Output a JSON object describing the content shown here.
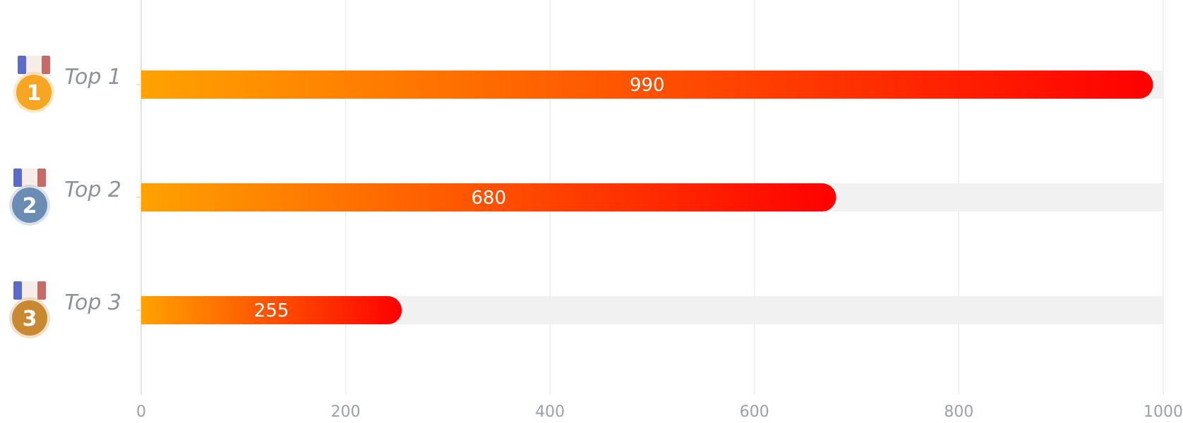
{
  "chart_data": {
    "type": "bar",
    "orientation": "horizontal",
    "categories": [
      "Top 1",
      "Top 2",
      "Top 3"
    ],
    "values": [
      990,
      680,
      255
    ],
    "data_labels": [
      "990",
      "680",
      "255"
    ],
    "xlim": [
      0,
      1000
    ],
    "x_ticks": [
      0,
      200,
      400,
      600,
      800,
      1000
    ],
    "x_tick_labels": [
      "0",
      "200",
      "400",
      "600",
      "800",
      "1000"
    ],
    "grid": true,
    "legend": "none",
    "title": "",
    "xlabel": "",
    "ylabel": "",
    "bar_gradient": [
      "#ffa200",
      "#ff0000"
    ],
    "track_color": "#f1f1f1"
  },
  "medals": [
    {
      "number": "1",
      "icon": "gold-medal-icon",
      "color": "#f6a623"
    },
    {
      "number": "2",
      "icon": "silver-medal-icon",
      "color": "#6b8db3"
    },
    {
      "number": "3",
      "icon": "bronze-medal-icon",
      "color": "#c98832"
    }
  ]
}
